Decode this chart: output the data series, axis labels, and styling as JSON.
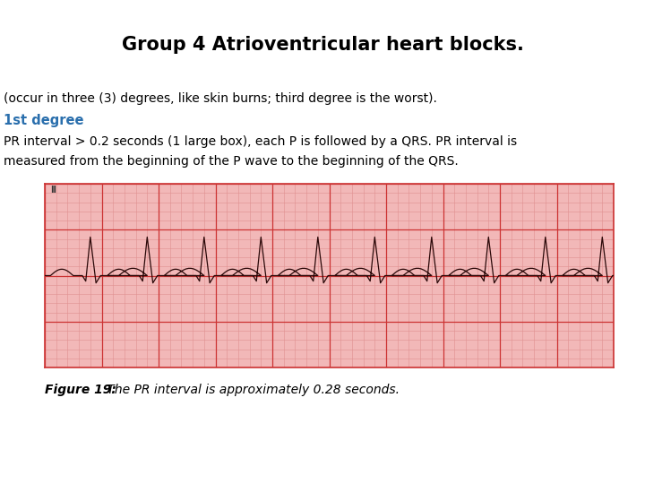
{
  "title": "Group 4 Atrioventricular heart blocks.",
  "title_fontsize": 15,
  "title_fontweight": "bold",
  "body_text_line1": "(occur in three (3) degrees, like skin burns; third degree is the worst).",
  "body_text_line1_fontsize": 10,
  "body_text_line1_color": "#000000",
  "degree_label": "1st degree",
  "degree_label_fontsize": 10.5,
  "degree_label_color": "#2a6fad",
  "degree_label_fontweight": "bold",
  "body_text_line2": "PR interval > 0.2 seconds (1 large box), each P is followed by a QRS. PR interval is",
  "body_text_line2_fontsize": 10,
  "body_text_line2_color": "#000000",
  "body_text_line3": "measured from the beginning of the P wave to the beginning of the QRS.",
  "body_text_line3_fontsize": 10,
  "body_text_line3_color": "#000000",
  "ecg_bg_color": "#f2b8b8",
  "ecg_grid_major_color": "#cc3333",
  "ecg_grid_minor_color": "#e09090",
  "ecg_line_color": "#2a0808",
  "caption_label": "Figure 19:",
  "caption_rest": " The PR interval is approximately 0.28 seconds.",
  "caption_fontsize": 10,
  "caption_color": "#000000",
  "background_color": "#ffffff"
}
